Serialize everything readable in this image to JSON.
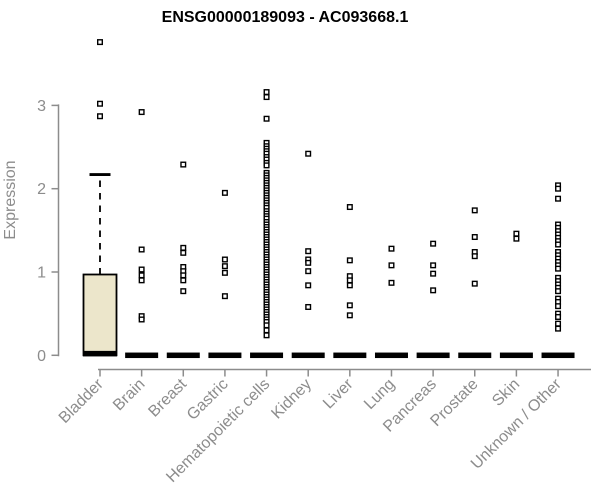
{
  "colors": {
    "background": "#ffffff",
    "box_fill": "#ece6cb",
    "axis": "#8c8c8c",
    "text": "#8c8c8c",
    "title": "#000000",
    "points": "#000000"
  },
  "chart_data": {
    "type": "boxplot",
    "title": "ENSG00000189093 - AC093668.1",
    "xlabel": "",
    "ylabel": "Expression",
    "ylim": [
      0,
      3.9
    ],
    "yticks": [
      0,
      1,
      2,
      3
    ],
    "grid": false,
    "legend": "none",
    "categories": [
      "Bladder",
      "Brain",
      "Breast",
      "Gastric",
      "Hematopoietic cells",
      "Kidney",
      "Liver",
      "Lung",
      "Pancreas",
      "Prostate",
      "Skin",
      "Unknown / Other"
    ],
    "boxes": [
      {
        "category": "Bladder",
        "q1": 0,
        "median": 0.02,
        "q3": 0.97,
        "whisker_low": 0,
        "whisker_high": 2.17,
        "collapsed": false
      },
      {
        "category": "Brain",
        "q1": 0,
        "median": 0,
        "q3": 0,
        "whisker_low": 0,
        "whisker_high": 0,
        "collapsed": true
      },
      {
        "category": "Breast",
        "q1": 0,
        "median": 0,
        "q3": 0,
        "whisker_low": 0,
        "whisker_high": 0,
        "collapsed": true
      },
      {
        "category": "Gastric",
        "q1": 0,
        "median": 0,
        "q3": 0,
        "whisker_low": 0,
        "whisker_high": 0,
        "collapsed": true
      },
      {
        "category": "Hematopoietic cells",
        "q1": 0,
        "median": 0,
        "q3": 0,
        "whisker_low": 0,
        "whisker_high": 0,
        "collapsed": true
      },
      {
        "category": "Kidney",
        "q1": 0,
        "median": 0,
        "q3": 0,
        "whisker_low": 0,
        "whisker_high": 0,
        "collapsed": true
      },
      {
        "category": "Liver",
        "q1": 0,
        "median": 0,
        "q3": 0,
        "whisker_low": 0,
        "whisker_high": 0,
        "collapsed": true
      },
      {
        "category": "Lung",
        "q1": 0,
        "median": 0,
        "q3": 0,
        "whisker_low": 0,
        "whisker_high": 0,
        "collapsed": true
      },
      {
        "category": "Pancreas",
        "q1": 0,
        "median": 0,
        "q3": 0,
        "whisker_low": 0,
        "whisker_high": 0,
        "collapsed": true
      },
      {
        "category": "Prostate",
        "q1": 0,
        "median": 0,
        "q3": 0,
        "whisker_low": 0,
        "whisker_high": 0,
        "collapsed": true
      },
      {
        "category": "Skin",
        "q1": 0,
        "median": 0,
        "q3": 0,
        "whisker_low": 0,
        "whisker_high": 0,
        "collapsed": true
      },
      {
        "category": "Unknown / Other",
        "q1": 0,
        "median": 0,
        "q3": 0,
        "whisker_low": 0,
        "whisker_high": 0,
        "collapsed": true
      }
    ],
    "series_points": [
      [
        3.76,
        3.02,
        2.87
      ],
      [
        2.92,
        1.27,
        1.03,
        0.96,
        0.9,
        0.47,
        0.43
      ],
      [
        2.29,
        1.29,
        1.23,
        1.06,
        1.01,
        0.96,
        0.9,
        0.77
      ],
      [
        1.95,
        1.15,
        1.07,
        0.99,
        0.71
      ],
      [
        3.16,
        3.1,
        2.84,
        2.55,
        2.51,
        2.48,
        2.45,
        2.42,
        2.38,
        2.35,
        2.31,
        2.28,
        2.19,
        2.16,
        2.13,
        2.1,
        2.07,
        2.04,
        2.01,
        1.98,
        1.95,
        1.92,
        1.89,
        1.86,
        1.83,
        1.8,
        1.77,
        1.73,
        1.7,
        1.67,
        1.64,
        1.6,
        1.57,
        1.54,
        1.51,
        1.48,
        1.45,
        1.42,
        1.39,
        1.36,
        1.33,
        1.3,
        1.27,
        1.24,
        1.21,
        1.18,
        1.15,
        1.12,
        1.09,
        1.06,
        1.03,
        1.0,
        0.97,
        0.94,
        0.91,
        0.88,
        0.85,
        0.82,
        0.79,
        0.76,
        0.73,
        0.7,
        0.67,
        0.64,
        0.61,
        0.58,
        0.55,
        0.52,
        0.49,
        0.46,
        0.43,
        0.4,
        0.36,
        0.3,
        0.24
      ],
      [
        2.42,
        1.25,
        1.15,
        1.11,
        1.01,
        0.84,
        0.58
      ],
      [
        1.78,
        1.14,
        0.95,
        0.9,
        0.84,
        0.6,
        0.48
      ],
      [
        1.28,
        1.08,
        0.87
      ],
      [
        1.34,
        1.08,
        0.98,
        0.78
      ],
      [
        1.74,
        1.42,
        1.24,
        1.19,
        0.86
      ],
      [
        1.46,
        1.4
      ],
      [
        2.04,
        2.0,
        1.88,
        1.57,
        1.53,
        1.49,
        1.45,
        1.41,
        1.37,
        1.33,
        1.24,
        1.2,
        1.16,
        1.12,
        1.08,
        1.04,
        0.93,
        0.89,
        0.85,
        0.81,
        0.77,
        0.68,
        0.64,
        0.59,
        0.5,
        0.46,
        0.38,
        0.32
      ]
    ]
  }
}
